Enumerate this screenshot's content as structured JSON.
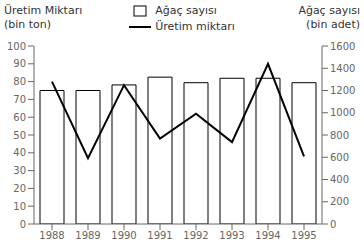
{
  "chart_data": {
    "type": "bar_line",
    "categories": [
      "1988",
      "1989",
      "1990",
      "1991",
      "1992",
      "1993",
      "1994",
      "1995"
    ],
    "series": [
      {
        "name": "Ağaç sayısı",
        "type": "bar",
        "axis": "y2",
        "color": "white",
        "values": [
          1200,
          1200,
          1250,
          1320,
          1270,
          1310,
          1310,
          1270
        ]
      },
      {
        "name": "Üretim miktarı",
        "type": "line",
        "color": "black",
        "values": [
          80,
          37,
          78,
          48,
          62,
          46,
          90,
          38
        ]
      }
    ],
    "ylabel": [
      "Üretim Miktarı",
      "(bin ton)"
    ],
    "y2label": [
      "Ağaç sayısı",
      "(bin adet)"
    ],
    "ylim": [
      0,
      100
    ],
    "yticks": [
      0,
      10,
      20,
      30,
      40,
      50,
      60,
      70,
      80,
      90,
      100
    ],
    "y2lim": [
      0,
      1600
    ],
    "y2ticks": [
      0,
      200,
      400,
      600,
      800,
      1000,
      1200,
      1400,
      1600
    ],
    "legend": "top",
    "grid": false
  }
}
